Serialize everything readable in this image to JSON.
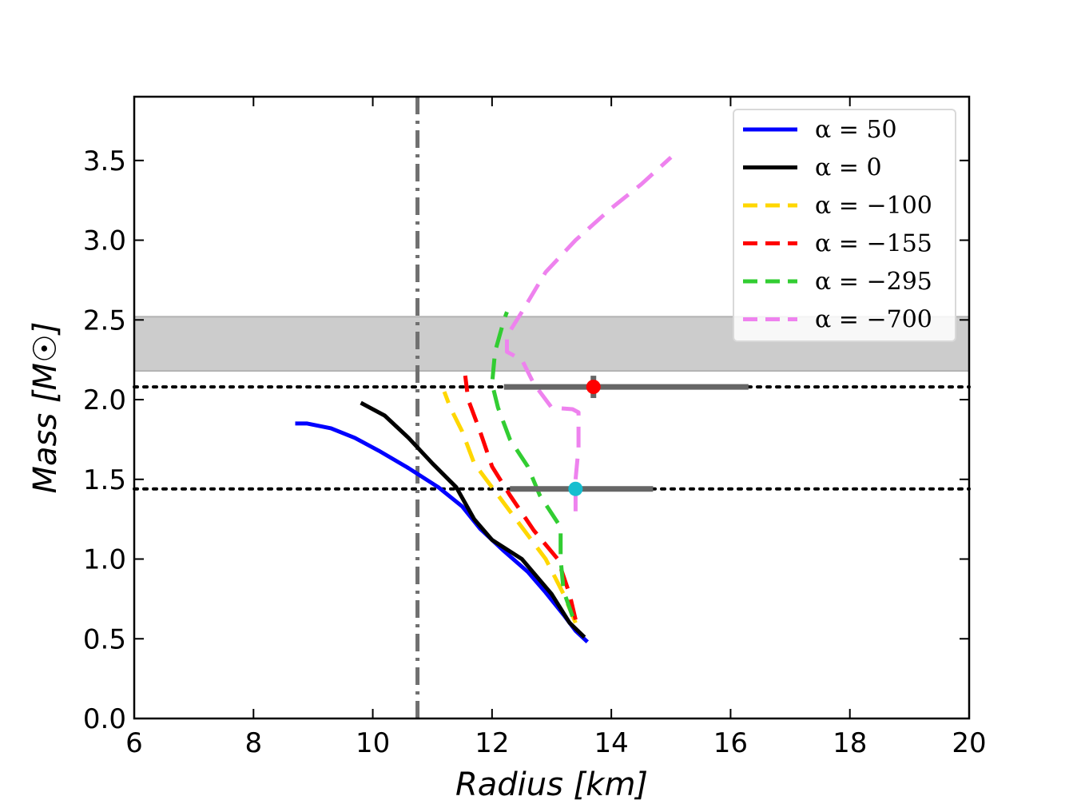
{
  "chart_data": {
    "type": "line",
    "xlabel": "Radius [km]",
    "ylabel": "Mass [M☉]",
    "xlim": [
      6,
      20
    ],
    "ylim": [
      0.0,
      3.9
    ],
    "xticks": [
      6,
      8,
      10,
      12,
      14,
      16,
      18,
      20
    ],
    "xtick_labels": [
      "6",
      "8",
      "10",
      "12",
      "14",
      "16",
      "18",
      "20"
    ],
    "yticks": [
      0.0,
      0.5,
      1.0,
      1.5,
      2.0,
      2.5,
      3.0,
      3.5
    ],
    "ytick_labels": [
      "0.0",
      "0.5",
      "1.0",
      "1.5",
      "2.0",
      "2.5",
      "3.0",
      "3.5"
    ],
    "grid": false,
    "legend_position": "top-right",
    "series": [
      {
        "name": "α = 50",
        "legend_label": "α = 50",
        "color": "#0000ff",
        "style": "solid",
        "points": [
          [
            13.6,
            0.48
          ],
          [
            13.4,
            0.55
          ],
          [
            13.2,
            0.65
          ],
          [
            12.9,
            0.79
          ],
          [
            12.6,
            0.92
          ],
          [
            12.2,
            1.05
          ],
          [
            11.8,
            1.19
          ],
          [
            11.5,
            1.33
          ],
          [
            11.1,
            1.45
          ],
          [
            10.6,
            1.57
          ],
          [
            10.1,
            1.68
          ],
          [
            9.7,
            1.76
          ],
          [
            9.3,
            1.82
          ],
          [
            8.9,
            1.85
          ],
          [
            8.7,
            1.85
          ]
        ]
      },
      {
        "name": "α = 0",
        "legend_label": "α = 0",
        "color": "#000000",
        "style": "solid",
        "points": [
          [
            13.55,
            0.51
          ],
          [
            13.3,
            0.6
          ],
          [
            13.0,
            0.78
          ],
          [
            12.5,
            1.0
          ],
          [
            12.0,
            1.12
          ],
          [
            11.7,
            1.25
          ],
          [
            11.4,
            1.45
          ],
          [
            11.0,
            1.6
          ],
          [
            10.6,
            1.76
          ],
          [
            10.2,
            1.9
          ],
          [
            9.8,
            1.98
          ]
        ]
      },
      {
        "name": "α = -100",
        "legend_label": "α = −100",
        "color": "#ffd700",
        "style": "dashed",
        "points": [
          [
            13.4,
            0.6
          ],
          [
            13.2,
            0.78
          ],
          [
            12.9,
            1.0
          ],
          [
            12.5,
            1.2
          ],
          [
            12.1,
            1.4
          ],
          [
            11.7,
            1.6
          ],
          [
            11.5,
            1.8
          ],
          [
            11.3,
            1.95
          ],
          [
            11.2,
            2.05
          ]
        ]
      },
      {
        "name": "α = -155",
        "legend_label": "α = −155",
        "color": "#ff0000",
        "style": "dashed",
        "points": [
          [
            13.4,
            0.62
          ],
          [
            13.3,
            0.78
          ],
          [
            13.1,
            1.0
          ],
          [
            12.7,
            1.18
          ],
          [
            12.3,
            1.4
          ],
          [
            12.0,
            1.58
          ],
          [
            11.8,
            1.8
          ],
          [
            11.6,
            2.0
          ],
          [
            11.55,
            2.15
          ]
        ]
      },
      {
        "name": "α = -295",
        "legend_label": "α = −295",
        "color": "#32cd32",
        "style": "dashed",
        "points": [
          [
            13.35,
            0.64
          ],
          [
            13.2,
            0.8
          ],
          [
            13.15,
            1.0
          ],
          [
            13.15,
            1.2
          ],
          [
            12.8,
            1.4
          ],
          [
            12.6,
            1.58
          ],
          [
            12.3,
            1.75
          ],
          [
            12.1,
            1.95
          ],
          [
            12.0,
            2.1
          ],
          [
            12.05,
            2.3
          ],
          [
            12.2,
            2.5
          ],
          [
            12.25,
            2.55
          ]
        ]
      },
      {
        "name": "α = -700",
        "legend_label": "α = −700",
        "color": "#ee82ee",
        "style": "dashed",
        "points": [
          [
            13.4,
            1.3
          ],
          [
            13.4,
            1.5
          ],
          [
            13.45,
            1.7
          ],
          [
            13.45,
            1.92
          ],
          [
            13.35,
            1.94
          ],
          [
            13.0,
            1.95
          ],
          [
            12.7,
            2.1
          ],
          [
            12.5,
            2.25
          ],
          [
            12.25,
            2.3
          ],
          [
            12.25,
            2.4
          ],
          [
            12.5,
            2.55
          ],
          [
            12.9,
            2.8
          ],
          [
            13.4,
            3.0
          ],
          [
            14.0,
            3.2
          ],
          [
            14.5,
            3.35
          ],
          [
            15.0,
            3.52
          ]
        ]
      }
    ],
    "reference_lines": [
      {
        "orientation": "horizontal",
        "y": 2.08,
        "style": "dotted",
        "color": "#000000"
      },
      {
        "orientation": "horizontal",
        "y": 1.44,
        "style": "dotted",
        "color": "#000000"
      },
      {
        "orientation": "vertical",
        "x": 10.75,
        "style": "dashdot",
        "color": "#707070"
      }
    ],
    "shaded_bands": [
      {
        "y_from": 2.18,
        "y_to": 2.52,
        "color": "#cccccc"
      }
    ],
    "error_markers": [
      {
        "x": 13.7,
        "y": 2.08,
        "x_err": [
          12.2,
          16.3
        ],
        "y_err": [
          2.01,
          2.15
        ],
        "color": "#ff0000"
      },
      {
        "x": 13.4,
        "y": 1.44,
        "x_err": [
          12.3,
          14.7
        ],
        "y_err": [
          1.44,
          1.44
        ],
        "color": "#17becf"
      }
    ]
  }
}
